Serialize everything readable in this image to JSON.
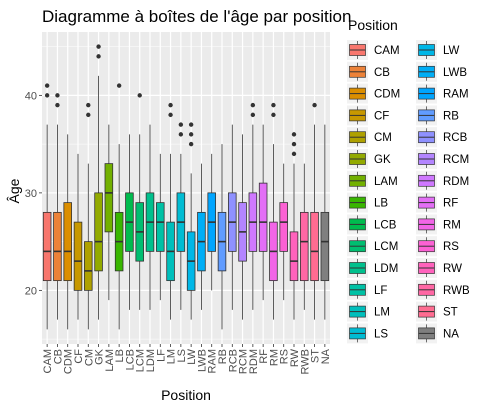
{
  "chart_data": {
    "type": "boxplot",
    "title": "Diagramme à boîtes de l'âge par position",
    "xlabel": "Position",
    "ylabel": "Âge",
    "legend_title": "Position",
    "legend_position": "right",
    "ylim": [
      14.5,
      46.5
    ],
    "yticks": [
      20,
      30,
      40
    ],
    "grid": true,
    "categories": [
      "CAM",
      "CB",
      "CDM",
      "CF",
      "CM",
      "GK",
      "LAM",
      "LB",
      "LCB",
      "LCM",
      "LDM",
      "LF",
      "LM",
      "LS",
      "LW",
      "LWB",
      "RAM",
      "RB",
      "RCB",
      "RCM",
      "RDM",
      "RF",
      "RM",
      "RS",
      "RW",
      "RWB",
      "ST",
      "NA"
    ],
    "colors": [
      "#F8766D",
      "#EC8239",
      "#DB8E00",
      "#C79800",
      "#AFA100",
      "#93AA00",
      "#72B000",
      "#39B600",
      "#00BB4E",
      "#00BE71",
      "#00C08D",
      "#00C1A5",
      "#00BFBC",
      "#00BCD3",
      "#00B7E7",
      "#00AEF6",
      "#00A5FF",
      "#619CFF",
      "#8F91FF",
      "#B385FF",
      "#CF78FF",
      "#E36EF6",
      "#F265E7",
      "#FC61D4",
      "#FF62BC",
      "#FF67A4",
      "#FF6C91",
      "#7F7F7F"
    ],
    "series": [
      {
        "name": "CAM",
        "values": {
          "min": 16,
          "q1": 21,
          "median": 24,
          "q3": 28,
          "max": 37,
          "outliers": [
            40,
            41
          ]
        }
      },
      {
        "name": "CB",
        "values": {
          "min": 17,
          "q1": 21,
          "median": 24,
          "q3": 28,
          "max": 37,
          "outliers": [
            39,
            40
          ]
        }
      },
      {
        "name": "CDM",
        "values": {
          "min": 16,
          "q1": 21,
          "median": 24,
          "q3": 29,
          "max": 36,
          "outliers": []
        }
      },
      {
        "name": "CF",
        "values": {
          "min": 17,
          "q1": 20,
          "median": 23,
          "q3": 27,
          "max": 34,
          "outliers": []
        }
      },
      {
        "name": "CM",
        "values": {
          "min": 16,
          "q1": 20,
          "median": 22,
          "q3": 25,
          "max": 33,
          "outliers": [
            38,
            39
          ]
        }
      },
      {
        "name": "GK",
        "values": {
          "min": 17,
          "q1": 22,
          "median": 25,
          "q3": 30,
          "max": 42,
          "outliers": [
            44,
            45
          ]
        }
      },
      {
        "name": "LAM",
        "values": {
          "min": 19,
          "q1": 26,
          "median": 30,
          "q3": 33,
          "max": 37,
          "outliers": []
        }
      },
      {
        "name": "LB",
        "values": {
          "min": 16,
          "q1": 22,
          "median": 25,
          "q3": 28,
          "max": 35,
          "outliers": [
            41
          ]
        }
      },
      {
        "name": "LCB",
        "values": {
          "min": 18,
          "q1": 24,
          "median": 27,
          "q3": 30,
          "max": 36,
          "outliers": []
        }
      },
      {
        "name": "LCM",
        "values": {
          "min": 18,
          "q1": 23,
          "median": 26,
          "q3": 29,
          "max": 36,
          "outliers": [
            40
          ]
        }
      },
      {
        "name": "LDM",
        "values": {
          "min": 18,
          "q1": 24,
          "median": 27,
          "q3": 30,
          "max": 37,
          "outliers": []
        }
      },
      {
        "name": "LF",
        "values": {
          "min": 19,
          "q1": 24,
          "median": 27,
          "q3": 29,
          "max": 34,
          "outliers": []
        }
      },
      {
        "name": "LM",
        "values": {
          "min": 17,
          "q1": 21,
          "median": 24,
          "q3": 27,
          "max": 34,
          "outliers": [
            38,
            39
          ]
        }
      },
      {
        "name": "LS",
        "values": {
          "min": 18,
          "q1": 24,
          "median": 27,
          "q3": 30,
          "max": 34,
          "outliers": [
            36,
            37
          ]
        }
      },
      {
        "name": "LW",
        "values": {
          "min": 17,
          "q1": 20,
          "median": 23,
          "q3": 26,
          "max": 32,
          "outliers": [
            35,
            36,
            37
          ]
        }
      },
      {
        "name": "LWB",
        "values": {
          "min": 18,
          "q1": 22,
          "median": 25,
          "q3": 28,
          "max": 33,
          "outliers": []
        }
      },
      {
        "name": "RAM",
        "values": {
          "min": 20,
          "q1": 24,
          "median": 27,
          "q3": 30,
          "max": 34,
          "outliers": []
        }
      },
      {
        "name": "RB",
        "values": {
          "min": 16,
          "q1": 22,
          "median": 25,
          "q3": 28,
          "max": 35,
          "outliers": []
        }
      },
      {
        "name": "RCB",
        "values": {
          "min": 18,
          "q1": 24,
          "median": 27,
          "q3": 30,
          "max": 37,
          "outliers": []
        }
      },
      {
        "name": "RCM",
        "values": {
          "min": 17,
          "q1": 23,
          "median": 26,
          "q3": 29,
          "max": 36,
          "outliers": []
        }
      },
      {
        "name": "RDM",
        "values": {
          "min": 18,
          "q1": 24,
          "median": 27,
          "q3": 30,
          "max": 37,
          "outliers": [
            38,
            39
          ]
        }
      },
      {
        "name": "RF",
        "values": {
          "min": 19,
          "q1": 24,
          "median": 27,
          "q3": 31,
          "max": 37,
          "outliers": []
        }
      },
      {
        "name": "RM",
        "values": {
          "min": 17,
          "q1": 21,
          "median": 24,
          "q3": 27,
          "max": 35,
          "outliers": [
            38,
            39
          ]
        }
      },
      {
        "name": "RS",
        "values": {
          "min": 19,
          "q1": 24,
          "median": 27,
          "q3": 29,
          "max": 33,
          "outliers": []
        }
      },
      {
        "name": "RW",
        "values": {
          "min": 17,
          "q1": 21,
          "median": 23,
          "q3": 26,
          "max": 33,
          "outliers": [
            34,
            35,
            36
          ]
        }
      },
      {
        "name": "RWB",
        "values": {
          "min": 18,
          "q1": 21,
          "median": 25,
          "q3": 28,
          "max": 33,
          "outliers": []
        }
      },
      {
        "name": "ST",
        "values": {
          "min": 17,
          "q1": 21,
          "median": 24,
          "q3": 28,
          "max": 37,
          "outliers": [
            39
          ]
        }
      },
      {
        "name": "NA",
        "values": {
          "min": 17,
          "q1": 21,
          "median": 25,
          "q3": 28,
          "max": 37,
          "outliers": []
        }
      }
    ]
  }
}
